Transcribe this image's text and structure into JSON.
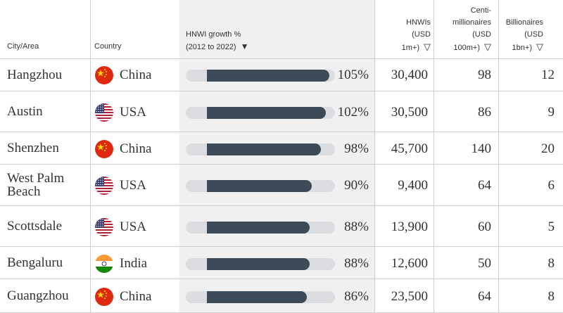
{
  "header": {
    "city": "City/Area",
    "country": "Country",
    "growth_line1": "HNWI growth %",
    "growth_line2": "(2012 to 2022)",
    "hnwi_lines": [
      "HNWIs",
      "(USD",
      "1m+)"
    ],
    "centi_lines": [
      "Centi-",
      "millionaires",
      "(USD",
      "100m+)"
    ],
    "bill_lines": [
      "Billionaires",
      "(USD",
      "1bn+)"
    ]
  },
  "colors": {
    "bar_fill": "#3d4a57",
    "bar_track": "#dcdde0",
    "highlight_column": "#f0f0f0"
  },
  "rows": [
    {
      "city": "Hangzhou",
      "country": "China",
      "flag": "china-flag-icon",
      "growth": 105,
      "growth_label": "105%",
      "hnwis": "30,400",
      "centi": "98",
      "billionaires": "12"
    },
    {
      "city": "Austin",
      "country": "USA",
      "flag": "usa-flag-icon",
      "growth": 102,
      "growth_label": "102%",
      "hnwis": "30,500",
      "centi": "86",
      "billionaires": "9"
    },
    {
      "city": "Shenzhen",
      "country": "China",
      "flag": "china-flag-icon",
      "growth": 98,
      "growth_label": "98%",
      "hnwis": "45,700",
      "centi": "140",
      "billionaires": "20"
    },
    {
      "city": "West Palm Beach",
      "country": "USA",
      "flag": "usa-flag-icon",
      "growth": 90,
      "growth_label": "90%",
      "hnwis": "9,400",
      "centi": "64",
      "billionaires": "6"
    },
    {
      "city": "Scottsdale",
      "country": "USA",
      "flag": "usa-flag-icon",
      "growth": 88,
      "growth_label": "88%",
      "hnwis": "13,900",
      "centi": "60",
      "billionaires": "5"
    },
    {
      "city": "Bengaluru",
      "country": "India",
      "flag": "india-flag-icon",
      "growth": 88,
      "growth_label": "88%",
      "hnwis": "12,600",
      "centi": "50",
      "billionaires": "8"
    },
    {
      "city": "Guangzhou",
      "country": "China",
      "flag": "china-flag-icon",
      "growth": 86,
      "growth_label": "86%",
      "hnwis": "23,500",
      "centi": "64",
      "billionaires": "8"
    }
  ]
}
